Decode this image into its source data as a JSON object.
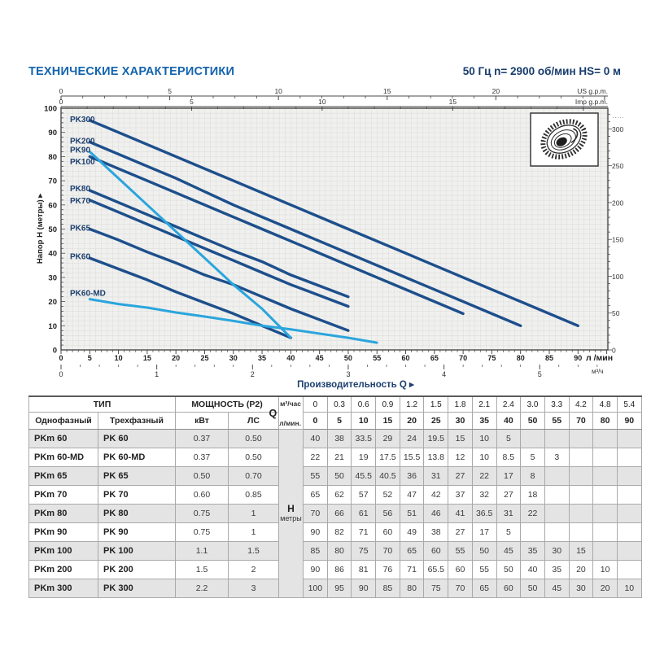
{
  "header": {
    "title": "ТЕХНИЧЕСКИЕ ХАРАКТЕРИСТИКИ",
    "subtitle": "50 Гц n= 2900 об/мин HS= 0 м"
  },
  "chart_data": {
    "type": "line",
    "xlabel": "Производительность Q",
    "xlabel_arrow": "▸",
    "ylabel": "Напор H (метры)",
    "ylabel_arrow": "▸",
    "x_axis": {
      "unit": "л /мин",
      "max_lmin": 95.2,
      "label_step": 5,
      "labels_to": 90
    },
    "x_axis_secondary": {
      "unit": "м³/ч",
      "lmin_per_unit": 16.667,
      "labels": [
        0,
        1,
        2,
        3,
        4,
        5
      ]
    },
    "x_top_axes": [
      {
        "unit": "US g.p.m.",
        "lmin_per_unit": 3.785,
        "label_step": 5,
        "labels_to": 20
      },
      {
        "unit": "Imp g.p.m.",
        "lmin_per_unit": 4.546,
        "label_step": 5,
        "labels_to": 15
      }
    ],
    "y_axis": {
      "max": 100,
      "label_step": 10,
      "minor_step": 2
    },
    "right_axis": {
      "m_per_unit": 0.3048,
      "label_step": 50,
      "minor_step": 10,
      "max": 328,
      "dots": "·····"
    },
    "grid": "fine",
    "colors": {
      "dark": "#1d4f8c",
      "light": "#2aa5dd",
      "grid": "#d3d3d2",
      "plot_bg": "#f0f0ee",
      "axis": "#4a4a4a",
      "tick_text": "#333333",
      "bold_text": "#222222",
      "label_text": "#1c3f6f"
    },
    "icon": "impeller-icon",
    "series": [
      {
        "name": "PK300",
        "color": "dark",
        "label_y_m": 95.5,
        "points": [
          [
            5,
            95
          ],
          [
            10,
            90
          ],
          [
            15,
            85
          ],
          [
            20,
            80
          ],
          [
            25,
            75
          ],
          [
            30,
            70
          ],
          [
            35,
            65
          ],
          [
            40,
            60
          ],
          [
            50,
            50
          ],
          [
            55,
            45
          ],
          [
            70,
            30
          ],
          [
            80,
            20
          ],
          [
            90,
            10
          ]
        ]
      },
      {
        "name": "PK200",
        "color": "dark",
        "label_y_m": 86.5,
        "points": [
          [
            5,
            86
          ],
          [
            10,
            81
          ],
          [
            15,
            76
          ],
          [
            20,
            71
          ],
          [
            25,
            65.5
          ],
          [
            30,
            60
          ],
          [
            35,
            55
          ],
          [
            40,
            50
          ],
          [
            50,
            40
          ],
          [
            55,
            35
          ],
          [
            70,
            20
          ],
          [
            80,
            10
          ]
        ]
      },
      {
        "name": "PK90",
        "color": "light",
        "label_y_m": 82.8,
        "points": [
          [
            5,
            82
          ],
          [
            10,
            71
          ],
          [
            15,
            60
          ],
          [
            20,
            49
          ],
          [
            25,
            38
          ],
          [
            30,
            27
          ],
          [
            35,
            17
          ],
          [
            40,
            5
          ]
        ]
      },
      {
        "name": "PK100",
        "color": "dark",
        "label_y_m": 78,
        "points": [
          [
            5,
            80
          ],
          [
            10,
            75
          ],
          [
            15,
            70
          ],
          [
            20,
            65
          ],
          [
            25,
            60
          ],
          [
            30,
            55
          ],
          [
            35,
            50
          ],
          [
            40,
            45
          ],
          [
            50,
            35
          ],
          [
            55,
            30
          ],
          [
            70,
            15
          ]
        ]
      },
      {
        "name": "PK80",
        "color": "dark",
        "label_y_m": 66.8,
        "points": [
          [
            5,
            66
          ],
          [
            10,
            61
          ],
          [
            15,
            56
          ],
          [
            20,
            51
          ],
          [
            25,
            46
          ],
          [
            30,
            41
          ],
          [
            35,
            36.5
          ],
          [
            40,
            31
          ],
          [
            50,
            22
          ]
        ]
      },
      {
        "name": "PK70",
        "color": "dark",
        "label_y_m": 61.8,
        "points": [
          [
            5,
            62
          ],
          [
            10,
            57
          ],
          [
            15,
            52
          ],
          [
            20,
            47
          ],
          [
            25,
            42
          ],
          [
            30,
            37
          ],
          [
            35,
            32
          ],
          [
            40,
            27
          ],
          [
            50,
            18
          ]
        ]
      },
      {
        "name": "PK65",
        "color": "dark",
        "label_y_m": 50.5,
        "points": [
          [
            5,
            50
          ],
          [
            10,
            45.5
          ],
          [
            15,
            40.5
          ],
          [
            20,
            36
          ],
          [
            25,
            31
          ],
          [
            30,
            27
          ],
          [
            35,
            22
          ],
          [
            40,
            17
          ],
          [
            50,
            8
          ]
        ]
      },
      {
        "name": "PK60",
        "color": "dark",
        "label_y_m": 38.8,
        "points": [
          [
            5,
            38
          ],
          [
            10,
            33.5
          ],
          [
            15,
            29
          ],
          [
            20,
            24
          ],
          [
            25,
            19.5
          ],
          [
            30,
            15
          ],
          [
            35,
            10
          ],
          [
            40,
            5
          ]
        ]
      },
      {
        "name": "PK60-MD",
        "color": "light",
        "label_y_m": 23.5,
        "points": [
          [
            5,
            21
          ],
          [
            10,
            19
          ],
          [
            15,
            17.5
          ],
          [
            20,
            15.5
          ],
          [
            25,
            13.8
          ],
          [
            30,
            12
          ],
          [
            35,
            10
          ],
          [
            40,
            8.5
          ],
          [
            50,
            5
          ],
          [
            55,
            3
          ]
        ]
      }
    ]
  },
  "table": {
    "type_header": "ТИП",
    "power_header": "МОЩНОСТЬ (P2)",
    "col_single": "Однофазный",
    "col_three": "Трехфазный",
    "col_kw": "кВт",
    "col_hp": "ЛС",
    "q_label": "Q",
    "q_row1_label": "м³/час",
    "q_row2_label": "л/мин.",
    "h_label": "H",
    "h_sublabel": "метры",
    "q_m3h": [
      "0",
      "0.3",
      "0.6",
      "0.9",
      "1.2",
      "1.5",
      "1.8",
      "2.1",
      "2.4",
      "3.0",
      "3.3",
      "4.2",
      "4.8",
      "5.4"
    ],
    "q_lmin": [
      "0",
      "5",
      "10",
      "15",
      "20",
      "25",
      "30",
      "35",
      "40",
      "50",
      "55",
      "70",
      "80",
      "90"
    ],
    "rows": [
      {
        "single": "PKm 60",
        "three": "PK 60",
        "kw": "0.37",
        "hp": "0.50",
        "h": [
          "40",
          "38",
          "33.5",
          "29",
          "24",
          "19.5",
          "15",
          "10",
          "5",
          "",
          "",
          "",
          "",
          ""
        ]
      },
      {
        "single": "PKm 60-MD",
        "three": "PK 60-MD",
        "kw": "0.37",
        "hp": "0.50",
        "h": [
          "22",
          "21",
          "19",
          "17.5",
          "15.5",
          "13.8",
          "12",
          "10",
          "8.5",
          "5",
          "3",
          "",
          "",
          ""
        ]
      },
      {
        "single": "PKm 65",
        "three": "PK 65",
        "kw": "0.50",
        "hp": "0.70",
        "h": [
          "55",
          "50",
          "45.5",
          "40.5",
          "36",
          "31",
          "27",
          "22",
          "17",
          "8",
          "",
          "",
          "",
          ""
        ]
      },
      {
        "single": "PKm 70",
        "three": "PK 70",
        "kw": "0.60",
        "hp": "0.85",
        "h": [
          "65",
          "62",
          "57",
          "52",
          "47",
          "42",
          "37",
          "32",
          "27",
          "18",
          "",
          "",
          "",
          ""
        ]
      },
      {
        "single": "PKm 80",
        "three": "PK 80",
        "kw": "0.75",
        "hp": "1",
        "h": [
          "70",
          "66",
          "61",
          "56",
          "51",
          "46",
          "41",
          "36.5",
          "31",
          "22",
          "",
          "",
          "",
          ""
        ]
      },
      {
        "single": "PKm 90",
        "three": "PK 90",
        "kw": "0.75",
        "hp": "1",
        "h": [
          "90",
          "82",
          "71",
          "60",
          "49",
          "38",
          "27",
          "17",
          "5",
          "",
          "",
          "",
          "",
          ""
        ]
      },
      {
        "single": "PKm 100",
        "three": "PK 100",
        "kw": "1.1",
        "hp": "1.5",
        "h": [
          "85",
          "80",
          "75",
          "70",
          "65",
          "60",
          "55",
          "50",
          "45",
          "35",
          "30",
          "15",
          "",
          ""
        ]
      },
      {
        "single": "PKm 200",
        "three": "PK 200",
        "kw": "1.5",
        "hp": "2",
        "h": [
          "90",
          "86",
          "81",
          "76",
          "71",
          "65.5",
          "60",
          "55",
          "50",
          "40",
          "35",
          "20",
          "10",
          ""
        ]
      },
      {
        "single": "PKm 300",
        "three": "PK 300",
        "kw": "2.2",
        "hp": "3",
        "h": [
          "100",
          "95",
          "90",
          "85",
          "80",
          "75",
          "70",
          "65",
          "60",
          "50",
          "45",
          "30",
          "20",
          "10"
        ]
      }
    ]
  }
}
